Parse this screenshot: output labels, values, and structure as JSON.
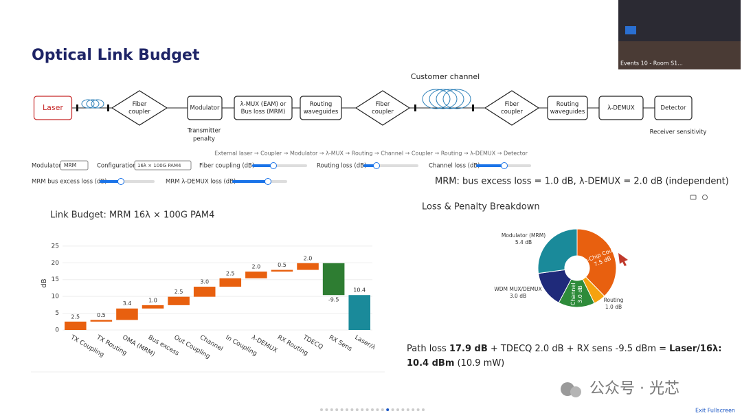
{
  "header": {
    "title": "Optical Link Budget"
  },
  "video": {
    "caption": "Events 10 - Room S1..."
  },
  "diagram": {
    "nodes": [
      {
        "lines": [
          "Laser"
        ]
      },
      {
        "lines": [
          "Fiber",
          "coupler"
        ]
      },
      {
        "lines": [
          "Modulator"
        ]
      },
      {
        "lines": [
          "λ-MUX (EAM) or",
          "Bus loss (MRM)"
        ]
      },
      {
        "lines": [
          "Routing",
          "waveguides"
        ]
      },
      {
        "lines": [
          "Fiber",
          "coupler"
        ]
      },
      {
        "lines": [
          "Fiber",
          "coupler"
        ]
      },
      {
        "lines": [
          "Routing",
          "waveguides"
        ]
      },
      {
        "lines": [
          "λ-DEMUX"
        ]
      },
      {
        "lines": [
          "Detector"
        ]
      }
    ],
    "annotations": [
      {
        "lines": [
          "Customer channel"
        ]
      },
      {
        "lines": [
          "Transmitter",
          "penalty"
        ]
      },
      {
        "lines": [
          "Receiver sensitivity"
        ]
      }
    ],
    "caption": "External laser → Coupler → Modulator → λ-MUX → Routing → Channel → Coupler → Routing → λ-DEMUX → Detector"
  },
  "controls": {
    "modulator": {
      "label": "Modulator",
      "value": "MRM"
    },
    "configuration": {
      "label": "Configuration",
      "value": "16λ × 100G PAM4"
    },
    "sliders": [
      "Fiber coupling (dB)",
      "Routing loss (dB)",
      "Channel loss (dB)",
      "MRM bus excess loss (dB)",
      "MRM λ-DEMUX loss (dB)"
    ]
  },
  "note": "MRM: bus excess loss = 1.0 dB, λ-DEMUX = 2.0 dB (independent)",
  "chart_data": [
    {
      "type": "waterfall",
      "title": "Link Budget: MRM 16λ × 100G PAM4",
      "y_label": "dB",
      "categories": [
        "TX Coupling",
        "TX Routing",
        "OMA (MRM)",
        "Bus excess",
        "Out Coupling",
        "Channel",
        "In Coupling",
        "λ-DEMUX",
        "RX Routing",
        "TDECQ",
        "RX Sens",
        "Laser/λ"
      ],
      "values": [
        2.5,
        0.5,
        3.4,
        1.0,
        2.5,
        3.0,
        2.5,
        2.0,
        0.5,
        2.0,
        -9.5,
        10.4
      ],
      "value_labels": [
        "2.5",
        "0.5",
        "3.4",
        "1.0",
        "2.5",
        "3.0",
        "2.5",
        "2.0",
        "0.5",
        "2.0",
        "-9.5",
        "10.4"
      ],
      "measure": [
        "relative",
        "relative",
        "relative",
        "relative",
        "relative",
        "relative",
        "relative",
        "relative",
        "relative",
        "relative",
        "relative",
        "total"
      ],
      "colors": {
        "increasing": "#e8600f",
        "decreasing": "#2e7d32",
        "total": "#1a8a9a"
      },
      "ylim": [
        0,
        26
      ],
      "yticks": [
        0,
        5,
        10,
        15,
        20,
        25
      ],
      "grid": true
    },
    {
      "type": "donut",
      "title": "Loss & Penalty Breakdown",
      "labels": [
        "Fiber-Chip Coupling",
        "Routing",
        "Channel",
        "WDM MUX/DEMUX",
        "Modulator (MRM)"
      ],
      "values": [
        7.5,
        1.0,
        3.0,
        3.0,
        5.4
      ],
      "value_labels": [
        "7.5 dB",
        "1.0 dB",
        "3.0 dB",
        "3.0 dB",
        "5.4 dB"
      ],
      "colors": [
        "#e8600f",
        "#f5a20f",
        "#2e8b3a",
        "#1f2a7a",
        "#1a8a9a"
      ]
    }
  ],
  "summary": [
    "Path loss ",
    "17.9 dB",
    " + TDECQ 2.0 dB + RX sens -9.5 dBm = ",
    "Laser/16λ:",
    "10.4 dBm",
    " (10.9 mW)"
  ],
  "watermark": "公众号 · 光芯",
  "footer": {
    "exit": "Exit Fullscreen"
  }
}
